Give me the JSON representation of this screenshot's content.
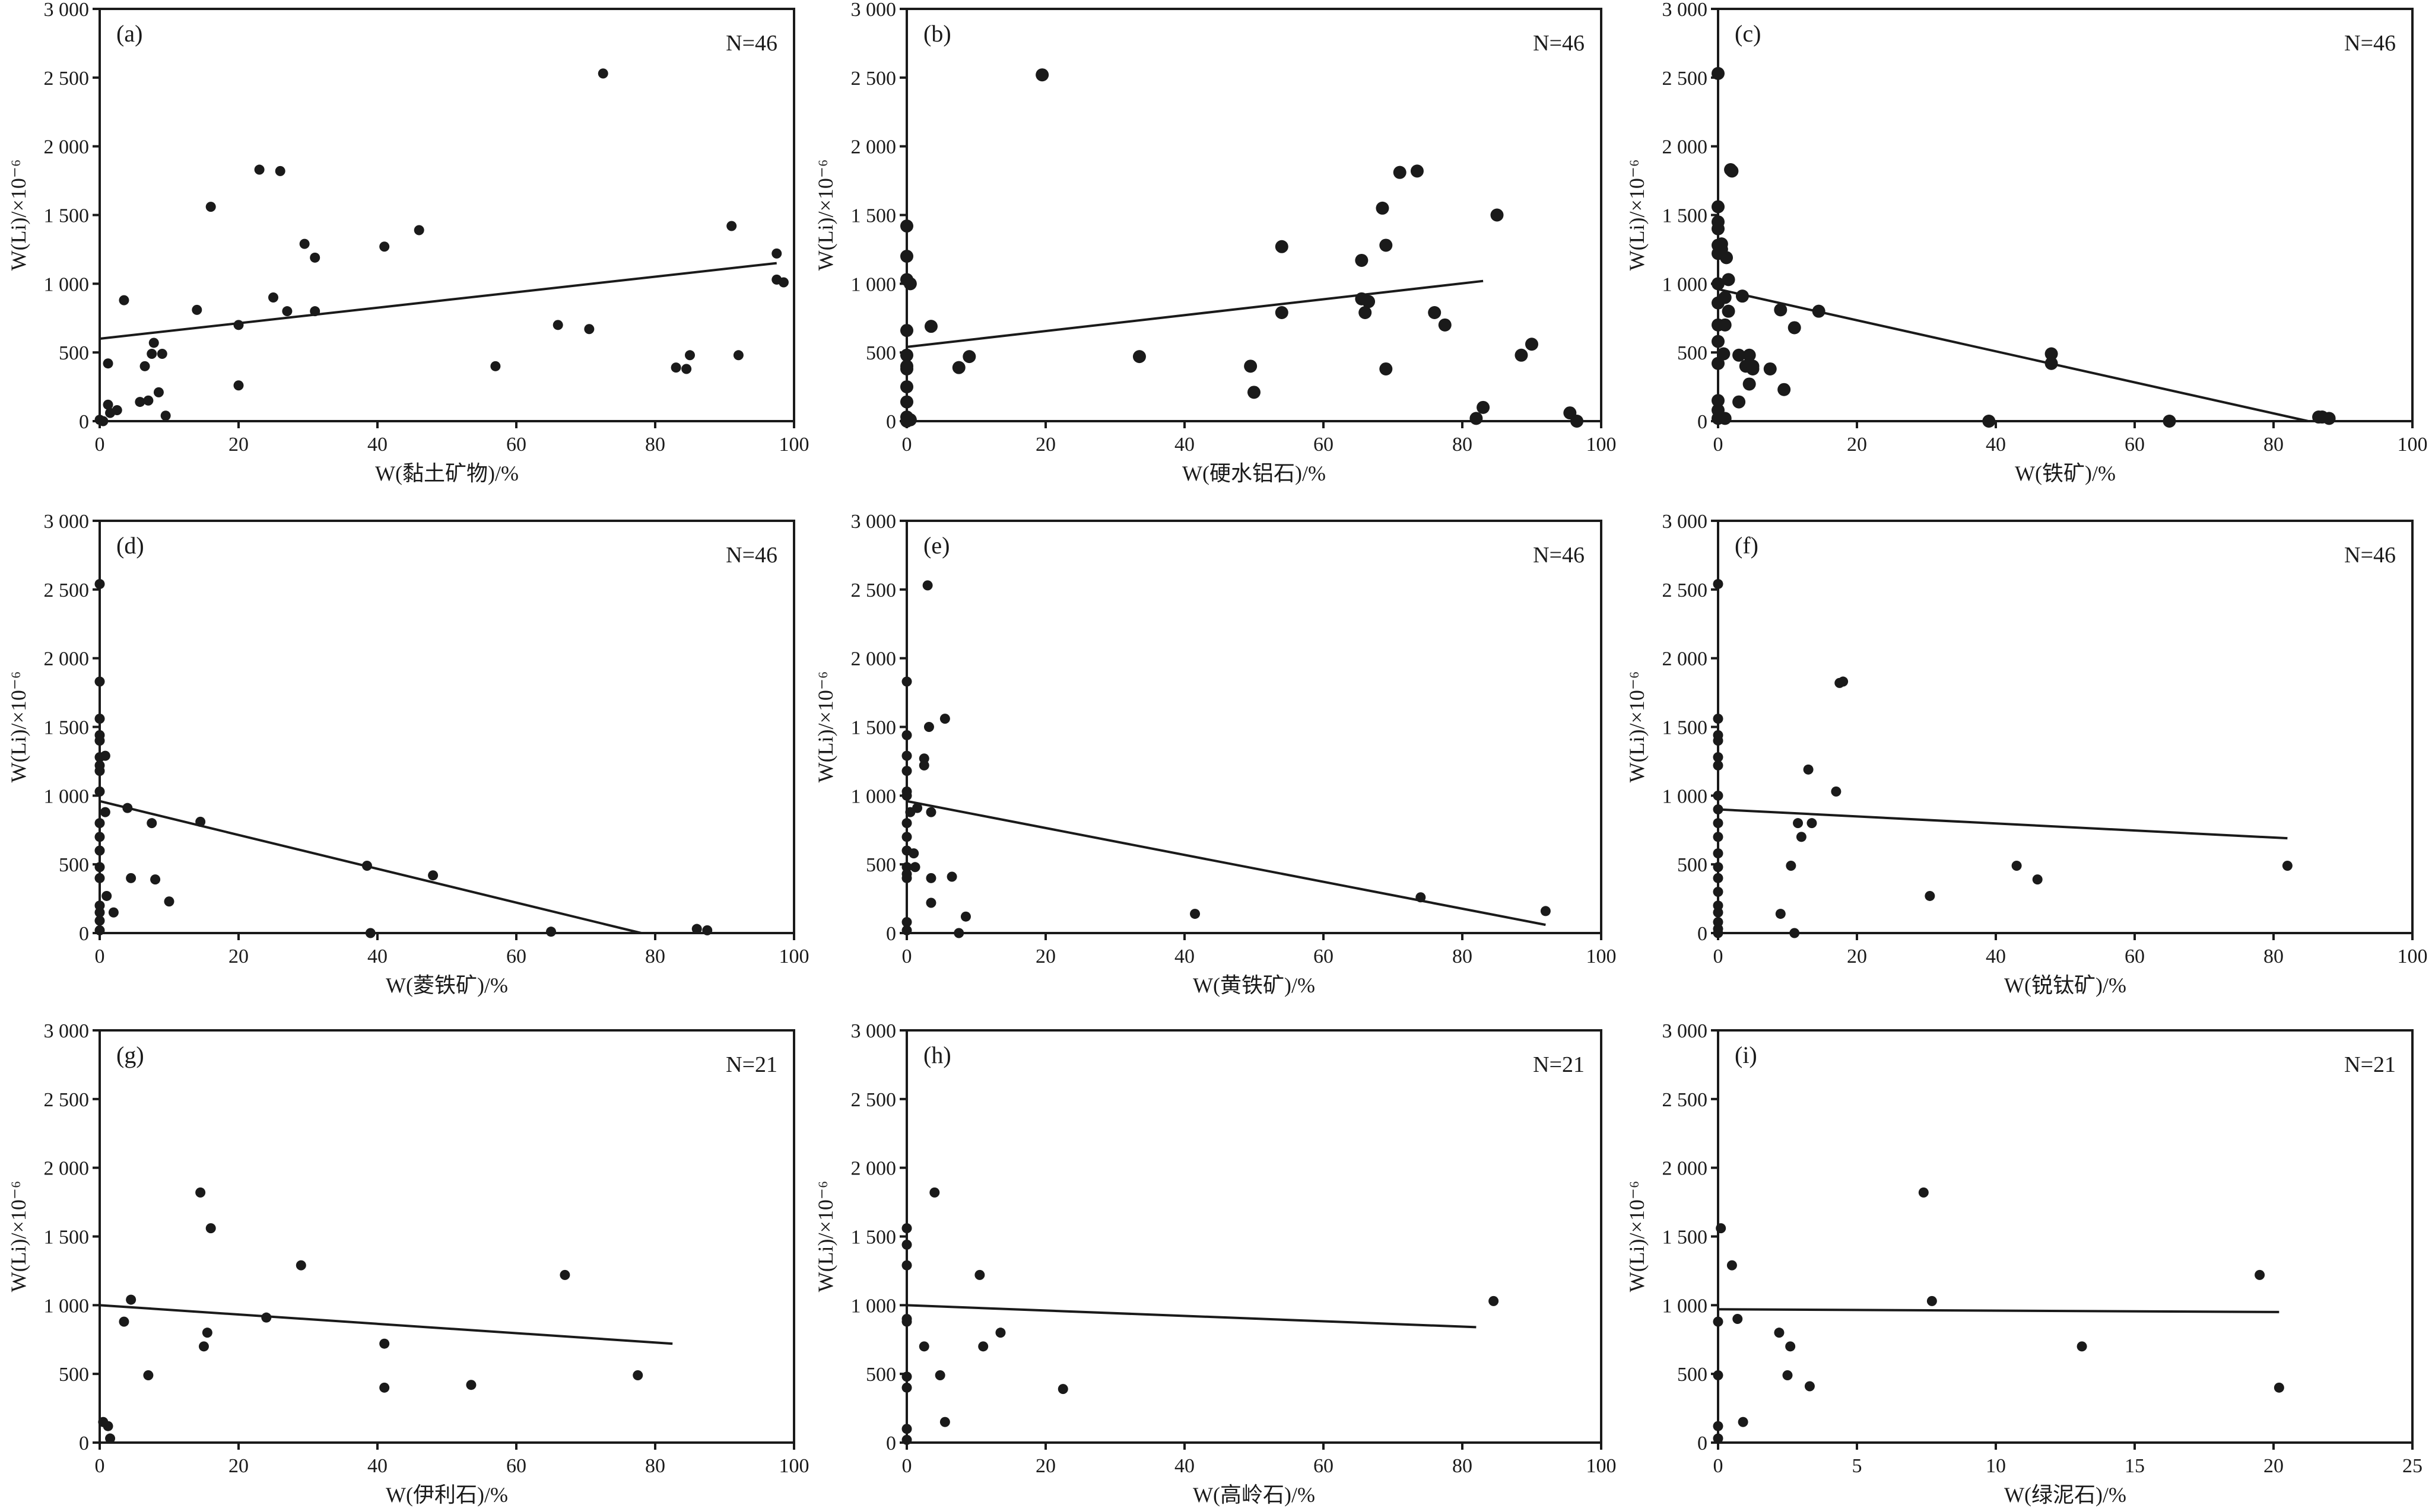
{
  "y_axis_label": "W(Li)/×10⁻⁶",
  "chart_data": [
    {
      "type": "scatter",
      "panel": "(a)",
      "n_label": "N=46",
      "xlabel": "W(黏土矿物)/%",
      "ylabel": "W(Li)/×10⁻⁶",
      "xlim": [
        0,
        100
      ],
      "ylim": [
        0,
        3000
      ],
      "x_ticks": [
        0,
        20,
        40,
        60,
        80,
        100
      ],
      "y_ticks": [
        0,
        500,
        1000,
        1500,
        2000,
        2500,
        3000
      ],
      "trend": [
        [
          0,
          600
        ],
        [
          97.5,
          1150
        ]
      ],
      "points": [
        [
          0,
          10
        ],
        [
          0.5,
          0
        ],
        [
          1.2,
          420
        ],
        [
          1.2,
          120
        ],
        [
          1.5,
          60
        ],
        [
          2.5,
          80
        ],
        [
          3.5,
          880
        ],
        [
          5.8,
          140
        ],
        [
          6.5,
          400
        ],
        [
          7,
          150
        ],
        [
          7.5,
          490
        ],
        [
          7.8,
          570
        ],
        [
          8.5,
          210
        ],
        [
          9,
          490
        ],
        [
          9.5,
          40
        ],
        [
          14,
          810
        ],
        [
          16,
          1560
        ],
        [
          20,
          700
        ],
        [
          20,
          260
        ],
        [
          23,
          1830
        ],
        [
          25,
          900
        ],
        [
          26,
          1820
        ],
        [
          27,
          800
        ],
        [
          29.5,
          1290
        ],
        [
          31,
          1190
        ],
        [
          31,
          800
        ],
        [
          41,
          1270
        ],
        [
          46,
          1390
        ],
        [
          57,
          400
        ],
        [
          66,
          700
        ],
        [
          70.5,
          670
        ],
        [
          72.5,
          2530
        ],
        [
          83,
          390
        ],
        [
          84.5,
          380
        ],
        [
          85,
          480
        ],
        [
          91,
          1420
        ],
        [
          92,
          480
        ],
        [
          97.5,
          1220
        ],
        [
          97.5,
          1030
        ],
        [
          98.5,
          1010
        ]
      ]
    },
    {
      "type": "scatter",
      "panel": "(b)",
      "n_label": "N=46",
      "xlabel": "W(硬水铝石)/%",
      "ylabel": "W(Li)/×10⁻⁶",
      "xlim": [
        0,
        100
      ],
      "ylim": [
        0,
        3000
      ],
      "x_ticks": [
        0,
        20,
        40,
        60,
        80,
        100
      ],
      "y_ticks": [
        0,
        500,
        1000,
        1500,
        2000,
        2500,
        3000
      ],
      "trend": [
        [
          0,
          540
        ],
        [
          83,
          1020
        ]
      ],
      "points": [
        [
          0,
          1420
        ],
        [
          0,
          1200
        ],
        [
          0,
          1030
        ],
        [
          0,
          660
        ],
        [
          0,
          480
        ],
        [
          0,
          400
        ],
        [
          0,
          380
        ],
        [
          0,
          250
        ],
        [
          0,
          140
        ],
        [
          0,
          30
        ],
        [
          0,
          0
        ],
        [
          0.5,
          1000
        ],
        [
          0.5,
          10
        ],
        [
          3.5,
          690
        ],
        [
          7.5,
          390
        ],
        [
          9,
          470
        ],
        [
          19.5,
          2520
        ],
        [
          33.5,
          470
        ],
        [
          49.5,
          400
        ],
        [
          50,
          210
        ],
        [
          54,
          1270
        ],
        [
          54,
          790
        ],
        [
          65.5,
          1170
        ],
        [
          65.5,
          890
        ],
        [
          66,
          790
        ],
        [
          66.5,
          870
        ],
        [
          68.5,
          1550
        ],
        [
          69,
          1280
        ],
        [
          69,
          380
        ],
        [
          71,
          1810
        ],
        [
          73.5,
          1820
        ],
        [
          76,
          790
        ],
        [
          77.5,
          700
        ],
        [
          82,
          20
        ],
        [
          83,
          100
        ],
        [
          85,
          1500
        ],
        [
          88.5,
          480
        ],
        [
          90,
          560
        ],
        [
          95.5,
          60
        ],
        [
          96.5,
          0
        ]
      ]
    },
    {
      "type": "scatter",
      "panel": "(c)",
      "n_label": "N=46",
      "xlabel": "W(铁矿)/%",
      "ylabel": "W(Li)/×10⁻⁶",
      "xlim": [
        0,
        100
      ],
      "ylim": [
        0,
        3000
      ],
      "x_ticks": [
        0,
        20,
        40,
        60,
        80,
        100
      ],
      "y_ticks": [
        0,
        500,
        1000,
        1500,
        2000,
        2500,
        3000
      ],
      "trend": [
        [
          0,
          960
        ],
        [
          85,
          0
        ]
      ],
      "points": [
        [
          0,
          2530
        ],
        [
          0,
          1560
        ],
        [
          0,
          1450
        ],
        [
          0,
          1400
        ],
        [
          0,
          1280
        ],
        [
          0,
          1220
        ],
        [
          0,
          1000
        ],
        [
          0,
          860
        ],
        [
          0,
          700
        ],
        [
          0,
          580
        ],
        [
          0,
          420
        ],
        [
          0,
          150
        ],
        [
          0,
          80
        ],
        [
          0,
          20
        ],
        [
          0.5,
          1290
        ],
        [
          0.5,
          1250
        ],
        [
          0.8,
          490
        ],
        [
          1,
          900
        ],
        [
          1,
          700
        ],
        [
          1,
          20
        ],
        [
          1.2,
          1190
        ],
        [
          1.5,
          800
        ],
        [
          1.5,
          1030
        ],
        [
          1.8,
          1830
        ],
        [
          2,
          1820
        ],
        [
          3,
          140
        ],
        [
          3,
          480
        ],
        [
          3.5,
          910
        ],
        [
          4,
          400
        ],
        [
          4.5,
          480
        ],
        [
          4.5,
          270
        ],
        [
          5,
          380
        ],
        [
          5,
          400
        ],
        [
          7.5,
          380
        ],
        [
          9,
          810
        ],
        [
          9.5,
          230
        ],
        [
          11,
          680
        ],
        [
          14.5,
          800
        ],
        [
          39,
          0
        ],
        [
          48,
          490
        ],
        [
          48,
          420
        ],
        [
          65,
          0
        ],
        [
          86.5,
          30
        ],
        [
          87,
          30
        ],
        [
          88,
          20
        ]
      ]
    },
    {
      "type": "scatter",
      "panel": "(d)",
      "n_label": "N=46",
      "xlabel": "W(菱铁矿)/%",
      "ylabel": "W(Li)/×10⁻⁶",
      "xlim": [
        0,
        100
      ],
      "ylim": [
        0,
        3000
      ],
      "x_ticks": [
        0,
        20,
        40,
        60,
        80,
        100
      ],
      "y_ticks": [
        0,
        500,
        1000,
        1500,
        2000,
        2500,
        3000
      ],
      "trend": [
        [
          0,
          960
        ],
        [
          78,
          0
        ]
      ],
      "points": [
        [
          0,
          2540
        ],
        [
          0,
          1830
        ],
        [
          0,
          1560
        ],
        [
          0,
          1440
        ],
        [
          0,
          1400
        ],
        [
          0,
          1280
        ],
        [
          0,
          1220
        ],
        [
          0,
          1180
        ],
        [
          0,
          1030
        ],
        [
          0,
          800
        ],
        [
          0,
          700
        ],
        [
          0,
          600
        ],
        [
          0,
          480
        ],
        [
          0,
          400
        ],
        [
          0,
          200
        ],
        [
          0,
          150
        ],
        [
          0,
          90
        ],
        [
          0,
          20
        ],
        [
          0.8,
          1290
        ],
        [
          0.8,
          880
        ],
        [
          1,
          270
        ],
        [
          2,
          150
        ],
        [
          4,
          910
        ],
        [
          4.5,
          400
        ],
        [
          7.5,
          800
        ],
        [
          8,
          390
        ],
        [
          10,
          230
        ],
        [
          14.5,
          810
        ],
        [
          38.5,
          490
        ],
        [
          39,
          0
        ],
        [
          48,
          420
        ],
        [
          65,
          10
        ],
        [
          86,
          30
        ],
        [
          87.5,
          20
        ]
      ]
    },
    {
      "type": "scatter",
      "panel": "(e)",
      "n_label": "N=46",
      "xlabel": "W(黄铁矿)/%",
      "ylabel": "W(Li)/×10⁻⁶",
      "xlim": [
        0,
        100
      ],
      "ylim": [
        0,
        3000
      ],
      "x_ticks": [
        0,
        20,
        40,
        60,
        80,
        100
      ],
      "y_ticks": [
        0,
        500,
        1000,
        1500,
        2000,
        2500,
        3000
      ],
      "trend": [
        [
          0,
          960
        ],
        [
          92,
          60
        ]
      ],
      "points": [
        [
          0,
          1830
        ],
        [
          0,
          1440
        ],
        [
          0,
          1290
        ],
        [
          0,
          1180
        ],
        [
          0,
          1030
        ],
        [
          0,
          1000
        ],
        [
          0,
          800
        ],
        [
          0,
          700
        ],
        [
          0,
          600
        ],
        [
          0,
          480
        ],
        [
          0,
          430
        ],
        [
          0,
          400
        ],
        [
          0,
          80
        ],
        [
          0,
          20
        ],
        [
          0.5,
          880
        ],
        [
          1,
          580
        ],
        [
          1.2,
          480
        ],
        [
          1.5,
          910
        ],
        [
          2.5,
          1270
        ],
        [
          2.5,
          1220
        ],
        [
          3,
          2530
        ],
        [
          3.2,
          1500
        ],
        [
          3.5,
          880
        ],
        [
          3.5,
          400
        ],
        [
          3.5,
          220
        ],
        [
          5.5,
          1560
        ],
        [
          6.5,
          410
        ],
        [
          7.5,
          0
        ],
        [
          8.5,
          120
        ],
        [
          41.5,
          140
        ],
        [
          74,
          260
        ],
        [
          92,
          160
        ]
      ]
    },
    {
      "type": "scatter",
      "panel": "(f)",
      "n_label": "N=46",
      "xlabel": "W(锐钛矿)/%",
      "ylabel": "W(Li)/×10⁻⁶",
      "xlim": [
        0,
        100
      ],
      "ylim": [
        0,
        3000
      ],
      "x_ticks": [
        0,
        20,
        40,
        60,
        80,
        100
      ],
      "y_ticks": [
        0,
        500,
        1000,
        1500,
        2000,
        2500,
        3000
      ],
      "trend": [
        [
          0,
          900
        ],
        [
          82,
          690
        ]
      ],
      "points": [
        [
          0,
          2540
        ],
        [
          0,
          1560
        ],
        [
          0,
          1440
        ],
        [
          0,
          1400
        ],
        [
          0,
          1280
        ],
        [
          0,
          1220
        ],
        [
          0,
          1000
        ],
        [
          0,
          900
        ],
        [
          0,
          800
        ],
        [
          0,
          700
        ],
        [
          0,
          580
        ],
        [
          0,
          480
        ],
        [
          0,
          400
        ],
        [
          0,
          300
        ],
        [
          0,
          200
        ],
        [
          0,
          150
        ],
        [
          0,
          80
        ],
        [
          0,
          30
        ],
        [
          0,
          0
        ],
        [
          9,
          140
        ],
        [
          10.5,
          490
        ],
        [
          11,
          0
        ],
        [
          11.5,
          800
        ],
        [
          12,
          700
        ],
        [
          13,
          1190
        ],
        [
          13.5,
          800
        ],
        [
          17,
          1030
        ],
        [
          17.5,
          1820
        ],
        [
          18,
          1830
        ],
        [
          30.5,
          270
        ],
        [
          43,
          490
        ],
        [
          46,
          390
        ],
        [
          82,
          490
        ]
      ]
    },
    {
      "type": "scatter",
      "panel": "(g)",
      "n_label": "N=21",
      "xlabel": "W(伊利石)/%",
      "ylabel": "W(Li)/×10⁻⁶",
      "xlim": [
        0,
        100
      ],
      "ylim": [
        0,
        3000
      ],
      "x_ticks": [
        0,
        20,
        40,
        60,
        80,
        100
      ],
      "y_ticks": [
        0,
        500,
        1000,
        1500,
        2000,
        2500,
        3000
      ],
      "trend": [
        [
          0,
          1000
        ],
        [
          82.5,
          720
        ]
      ],
      "points": [
        [
          0.5,
          150
        ],
        [
          1.2,
          120
        ],
        [
          1.5,
          30
        ],
        [
          3.5,
          880
        ],
        [
          4.5,
          1040
        ],
        [
          7,
          490
        ],
        [
          14.5,
          1820
        ],
        [
          15,
          700
        ],
        [
          15.5,
          800
        ],
        [
          16,
          1560
        ],
        [
          24,
          910
        ],
        [
          29,
          1290
        ],
        [
          41,
          720
        ],
        [
          41,
          400
        ],
        [
          53.5,
          420
        ],
        [
          67,
          1220
        ],
        [
          77.5,
          490
        ]
      ]
    },
    {
      "type": "scatter",
      "panel": "(h)",
      "n_label": "N=21",
      "xlabel": "W(高岭石)/%",
      "ylabel": "W(Li)/×10⁻⁶",
      "xlim": [
        0,
        100
      ],
      "ylim": [
        0,
        3000
      ],
      "x_ticks": [
        0,
        20,
        40,
        60,
        80,
        100
      ],
      "y_ticks": [
        0,
        500,
        1000,
        1500,
        2000,
        2500,
        3000
      ],
      "trend": [
        [
          0,
          1000
        ],
        [
          82,
          840
        ]
      ],
      "points": [
        [
          0,
          1560
        ],
        [
          0,
          1440
        ],
        [
          0,
          1290
        ],
        [
          0,
          900
        ],
        [
          0,
          880
        ],
        [
          0,
          480
        ],
        [
          0,
          400
        ],
        [
          0,
          100
        ],
        [
          0,
          20
        ],
        [
          2.5,
          700
        ],
        [
          4,
          1820
        ],
        [
          4.8,
          490
        ],
        [
          5.5,
          150
        ],
        [
          10.5,
          1220
        ],
        [
          11,
          700
        ],
        [
          13.5,
          800
        ],
        [
          22.5,
          390
        ],
        [
          84.5,
          1030
        ]
      ]
    },
    {
      "type": "scatter",
      "panel": "(i)",
      "n_label": "N=21",
      "xlabel": "W(绿泥石)/%",
      "ylabel": "W(Li)/×10⁻⁶",
      "xlim": [
        0,
        25
      ],
      "ylim": [
        0,
        3000
      ],
      "x_ticks": [
        0,
        5,
        10,
        15,
        20,
        25
      ],
      "y_ticks": [
        0,
        500,
        1000,
        1500,
        2000,
        2500,
        3000
      ],
      "trend": [
        [
          0,
          970
        ],
        [
          20.2,
          950
        ]
      ],
      "points": [
        [
          0,
          880
        ],
        [
          0,
          490
        ],
        [
          0,
          120
        ],
        [
          0,
          30
        ],
        [
          0.1,
          1560
        ],
        [
          0.5,
          1290
        ],
        [
          0.7,
          900
        ],
        [
          0.9,
          150
        ],
        [
          2.2,
          800
        ],
        [
          2.5,
          490
        ],
        [
          2.6,
          700
        ],
        [
          3.3,
          410
        ],
        [
          7.4,
          1820
        ],
        [
          7.7,
          1030
        ],
        [
          13.1,
          700
        ],
        [
          19.5,
          1220
        ],
        [
          20.2,
          400
        ]
      ]
    }
  ]
}
